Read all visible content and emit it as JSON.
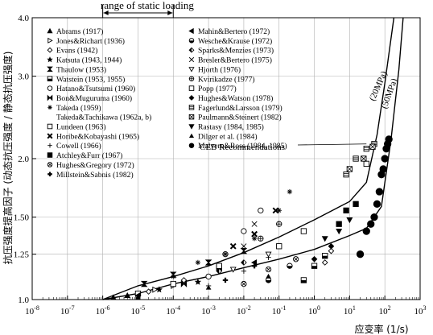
{
  "chart_data": {
    "type": "scatter",
    "title": "",
    "xlabel": "应变率 (1/s)",
    "ylabel": "抗压强度提高因子 (动态抗压强度 / 静态抗压强度)",
    "x_scale": "log",
    "y_scale": "log",
    "xlim": [
      1e-08,
      1000
    ],
    "ylim": [
      1.0,
      4.0
    ],
    "x_ticks": [
      {
        "v": 1e-08,
        "base": "10",
        "exp": "-8"
      },
      {
        "v": 1e-07,
        "base": "10",
        "exp": "-7"
      },
      {
        "v": 1e-06,
        "base": "10",
        "exp": "-6"
      },
      {
        "v": 1e-05,
        "base": "10",
        "exp": "-5"
      },
      {
        "v": 0.0001,
        "base": "10",
        "exp": "-4"
      },
      {
        "v": 0.001,
        "base": "10",
        "exp": "-3"
      },
      {
        "v": 0.01,
        "base": "10",
        "exp": "-2"
      },
      {
        "v": 0.1,
        "base": "10",
        "exp": "-1"
      },
      {
        "v": 1,
        "base": "10",
        "exp": "0"
      },
      {
        "v": 10,
        "base": "10",
        "exp": "1"
      },
      {
        "v": 100,
        "base": "10",
        "exp": "2"
      },
      {
        "v": 1000,
        "base": "10",
        "exp": "3"
      }
    ],
    "y_ticks": [
      {
        "v": 1.0,
        "label": "1.0"
      },
      {
        "v": 1.25,
        "label": "1.25"
      },
      {
        "v": 1.5,
        "label": "1.50"
      },
      {
        "v": 2.0,
        "label": "2.0"
      },
      {
        "v": 3.0,
        "label": "3.0"
      },
      {
        "v": 4.0,
        "label": "4.0"
      }
    ],
    "grid": true,
    "range_annotation": {
      "label": "range of static loading",
      "x_from": 1e-06,
      "x_to": 0.0001
    },
    "curves": [
      {
        "name": "(20MPa)",
        "points": [
          [
            1e-06,
            1.0
          ],
          [
            1e-05,
            1.07
          ],
          [
            0.0001,
            1.12
          ],
          [
            0.001,
            1.18
          ],
          [
            0.01,
            1.26
          ],
          [
            0.1,
            1.36
          ],
          [
            1,
            1.48
          ],
          [
            10,
            1.62
          ],
          [
            30,
            1.78
          ],
          [
            60,
            2.25
          ],
          [
            100,
            2.9
          ],
          [
            180,
            4.0
          ]
        ]
      },
      {
        "name": "(50MPa)",
        "points": [
          [
            1e-06,
            1.0
          ],
          [
            1e-05,
            1.03
          ],
          [
            0.0001,
            1.08
          ],
          [
            0.001,
            1.12
          ],
          [
            0.01,
            1.17
          ],
          [
            0.1,
            1.22
          ],
          [
            1,
            1.28
          ],
          [
            10,
            1.37
          ],
          [
            30,
            1.42
          ],
          [
            80,
            1.58
          ],
          [
            150,
            2.2
          ],
          [
            250,
            3.1
          ],
          [
            330,
            4.0
          ]
        ]
      }
    ],
    "curve_labels": [
      "(20MPa)",
      "(50MPa)"
    ],
    "ceb_label": "CEB Recommendations",
    "legend_left": [
      {
        "label": "Abrams (1917)",
        "marker": "tri-up"
      },
      {
        "label": "Jones&Richart (1936)",
        "marker": "tri-right-open"
      },
      {
        "label": "Evans (1942)",
        "marker": "diamond-open"
      },
      {
        "label": "Katsuta (1943, 1944)",
        "marker": "star"
      },
      {
        "label": "Thaulow (1953)",
        "marker": "hourglass"
      },
      {
        "label": "Watstein (1953, 1955)",
        "marker": "square-half"
      },
      {
        "label": "Hatano&Tsutsumi (1960)",
        "marker": "circle-open"
      },
      {
        "label": "Bon&Muguruma (1960)",
        "marker": "bowtie"
      },
      {
        "label": "Takeda (1959)",
        "marker": "asterisk"
      },
      {
        "label": "Takeda&Tachikawa (1962a, b)",
        "marker": "none"
      },
      {
        "label": "Lundeen (1963)",
        "marker": "square-open"
      },
      {
        "label": "Horibe&Kobayashi (1965)",
        "marker": "x-bold"
      },
      {
        "label": "Cowell (1966)",
        "marker": "plus"
      },
      {
        "label": "Atchley&Furr (1967)",
        "marker": "square"
      },
      {
        "label": "Hughes&Gregory (1972)",
        "marker": "circle-cross"
      },
      {
        "label": "Millstein&Sabnis (1982)",
        "marker": "cross-thick"
      }
    ],
    "legend_right": [
      {
        "label": "Mahin&Bertero (1972)",
        "marker": "tri-left"
      },
      {
        "label": "Wesche&Krause (1972)",
        "marker": "circle-half"
      },
      {
        "label": "Sparks&Menzies (1973)",
        "marker": "diamond-half"
      },
      {
        "label": "Bresler&Bertero (1975)",
        "marker": "x"
      },
      {
        "label": "Hjorth (1976)",
        "marker": "tri-down-open"
      },
      {
        "label": "Kvirikadze (1977)",
        "marker": "circle-plus"
      },
      {
        "label": "Popp (1977)",
        "marker": "square-open2"
      },
      {
        "label": "Hughes&Watson (1978)",
        "marker": "diamond"
      },
      {
        "label": "Fagerlund&Larsson (1979)",
        "marker": "square-lines"
      },
      {
        "label": "Paulmann&Steinert (1982)",
        "marker": "square-cross"
      },
      {
        "label": "Rastasy (1984, 1985)",
        "marker": "tri-down"
      },
      {
        "label": "Dilger et al. (1984)",
        "marker": "tri-up-small"
      },
      {
        "label": "Malvern&Ross (1984, 1985)",
        "marker": "circle"
      }
    ],
    "series": [
      {
        "name": "Abrams (1917)",
        "marker": "tri-up",
        "points": [
          [
            2e-06,
            1.01
          ],
          [
            5e-06,
            1.02
          ]
        ]
      },
      {
        "name": "Jones&Richart (1936)",
        "marker": "tri-right-open",
        "points": [
          [
            1e-05,
            1.02
          ],
          [
            3e-05,
            1.05
          ],
          [
            0.0001,
            1.07
          ]
        ]
      },
      {
        "name": "Evans (1942)",
        "marker": "diamond-open",
        "points": [
          [
            2e-05,
            1.04
          ],
          [
            0.0002,
            1.1
          ],
          [
            2,
            1.2
          ],
          [
            3,
            1.27
          ]
        ]
      },
      {
        "name": "Katsuta (1943, 1944)",
        "marker": "star",
        "points": [
          [
            4e-05,
            1.05
          ],
          [
            0.0005,
            1.09
          ]
        ]
      },
      {
        "name": "Thaulow (1953)",
        "marker": "hourglass",
        "points": [
          [
            1.5e-05,
            1.08
          ],
          [
            0.0001,
            1.13
          ],
          [
            0.001,
            1.2
          ],
          [
            0.01,
            1.27
          ]
        ]
      },
      {
        "name": "Watstein (1953, 1955)",
        "marker": "square-half",
        "points": [
          [
            0.5,
            1.1
          ],
          [
            1,
            1.18
          ],
          [
            2,
            1.24
          ]
        ]
      },
      {
        "name": "Hatano&Tsutsumi (1960)",
        "marker": "circle-open",
        "points": [
          [
            0.001,
            1.12
          ],
          [
            0.003,
            1.25
          ],
          [
            0.01,
            1.4
          ],
          [
            0.03,
            1.55
          ]
        ]
      },
      {
        "name": "Bon&Muguruma (1960)",
        "marker": "bowtie",
        "points": [
          [
            0.0002,
            1.08
          ],
          [
            0.002,
            1.17
          ]
        ]
      },
      {
        "name": "Takeda (1959)",
        "marker": "asterisk",
        "points": [
          [
            0.0001,
            1.12
          ],
          [
            0.0005,
            1.2
          ],
          [
            0.003,
            1.25
          ],
          [
            0.02,
            1.35
          ],
          [
            0.1,
            1.55
          ],
          [
            0.2,
            1.7
          ]
        ]
      },
      {
        "name": "Lundeen (1963)",
        "marker": "square-open",
        "points": [
          [
            1e-05,
            1.03
          ],
          [
            0.0001,
            1.08
          ],
          [
            0.002,
            1.18
          ]
        ]
      },
      {
        "name": "Horibe&Kobayashi (1965)",
        "marker": "x-bold",
        "points": [
          [
            0.005,
            1.3
          ],
          [
            0.02,
            1.38
          ],
          [
            0.08,
            1.55
          ]
        ]
      },
      {
        "name": "Cowell (1966)",
        "marker": "plus",
        "points": [
          [
            0.001,
            1.07
          ],
          [
            0.01,
            1.15
          ],
          [
            0.05,
            1.23
          ]
        ]
      },
      {
        "name": "Atchley&Furr (1967)",
        "marker": "square",
        "points": [
          [
            5,
            1.45
          ],
          [
            8,
            1.55
          ],
          [
            15,
            1.6
          ]
        ]
      },
      {
        "name": "Hughes&Gregory (1972)",
        "marker": "circle-cross",
        "points": [
          [
            0.01,
            1.08
          ],
          [
            0.05,
            1.16
          ],
          [
            0.3,
            1.22
          ]
        ]
      },
      {
        "name": "Millstein&Sabnis (1982)",
        "marker": "cross-thick",
        "points": [
          [
            0.003,
            1.1
          ],
          [
            0.02,
            1.18
          ]
        ]
      },
      {
        "name": "Mahin&Bertero (1972)",
        "marker": "tri-left",
        "points": [
          [
            1e-05,
            1.02
          ],
          [
            0.02,
            1.2
          ]
        ]
      },
      {
        "name": "Wesche&Krause (1972)",
        "marker": "circle-half",
        "points": [
          [
            0.05,
            1.1
          ],
          [
            0.2,
            1.18
          ]
        ]
      },
      {
        "name": "Sparks&Menzies (1973)",
        "marker": "diamond-half",
        "points": [
          [
            0.002,
            1.15
          ],
          [
            0.01,
            1.2
          ]
        ]
      },
      {
        "name": "Bresler&Bertero (1975)",
        "marker": "x",
        "points": [
          [
            0.001,
            1.2
          ],
          [
            0.01,
            1.3
          ],
          [
            0.02,
            1.45
          ]
        ]
      },
      {
        "name": "Hjorth (1976)",
        "marker": "tri-down-open",
        "points": [
          [
            0.005,
            1.16
          ],
          [
            0.05,
            1.25
          ]
        ]
      },
      {
        "name": "Kvirikadze (1977)",
        "marker": "circle-plus",
        "points": [
          [
            0.03,
            1.35
          ],
          [
            0.1,
            1.45
          ]
        ]
      },
      {
        "name": "Popp (1977)",
        "marker": "square-open2",
        "points": [
          [
            0.1,
            1.3
          ],
          [
            0.5,
            1.4
          ],
          [
            30,
            1.95
          ]
        ]
      },
      {
        "name": "Hughes&Watson (1978)",
        "marker": "diamond",
        "points": [
          [
            1,
            1.22
          ],
          [
            3,
            1.3
          ]
        ]
      },
      {
        "name": "Fagerlund&Larsson (1979)",
        "marker": "square-lines",
        "points": [
          [
            8,
            1.85
          ],
          [
            15,
            2.0
          ],
          [
            30,
            2.1
          ],
          [
            50,
            2.15
          ]
        ]
      },
      {
        "name": "Paulmann&Steinert (1982)",
        "marker": "square-cross",
        "points": [
          [
            10,
            1.9
          ],
          [
            25,
            2.0
          ],
          [
            45,
            2.12
          ]
        ]
      },
      {
        "name": "Rastasy (1984, 1985)",
        "marker": "tri-down",
        "points": [
          [
            2,
            1.35
          ],
          [
            5,
            1.4
          ],
          [
            10,
            1.48
          ]
        ]
      },
      {
        "name": "Dilger et al. (1984)",
        "marker": "tri-up-small",
        "points": [
          [
            1e-05,
            1.01
          ],
          [
            0.001,
            1.06
          ],
          [
            0.05,
            1.12
          ]
        ]
      },
      {
        "name": "Malvern&Ross (1984, 1985)",
        "marker": "circle",
        "points": [
          [
            20,
            1.25
          ],
          [
            30,
            1.4
          ],
          [
            40,
            1.45
          ],
          [
            50,
            1.5
          ],
          [
            60,
            1.6
          ],
          [
            70,
            1.7
          ],
          [
            80,
            1.85
          ],
          [
            90,
            1.9
          ],
          [
            100,
            2.0
          ],
          [
            110,
            2.1
          ],
          [
            120,
            2.15
          ],
          [
            130,
            2.2
          ]
        ]
      }
    ]
  }
}
